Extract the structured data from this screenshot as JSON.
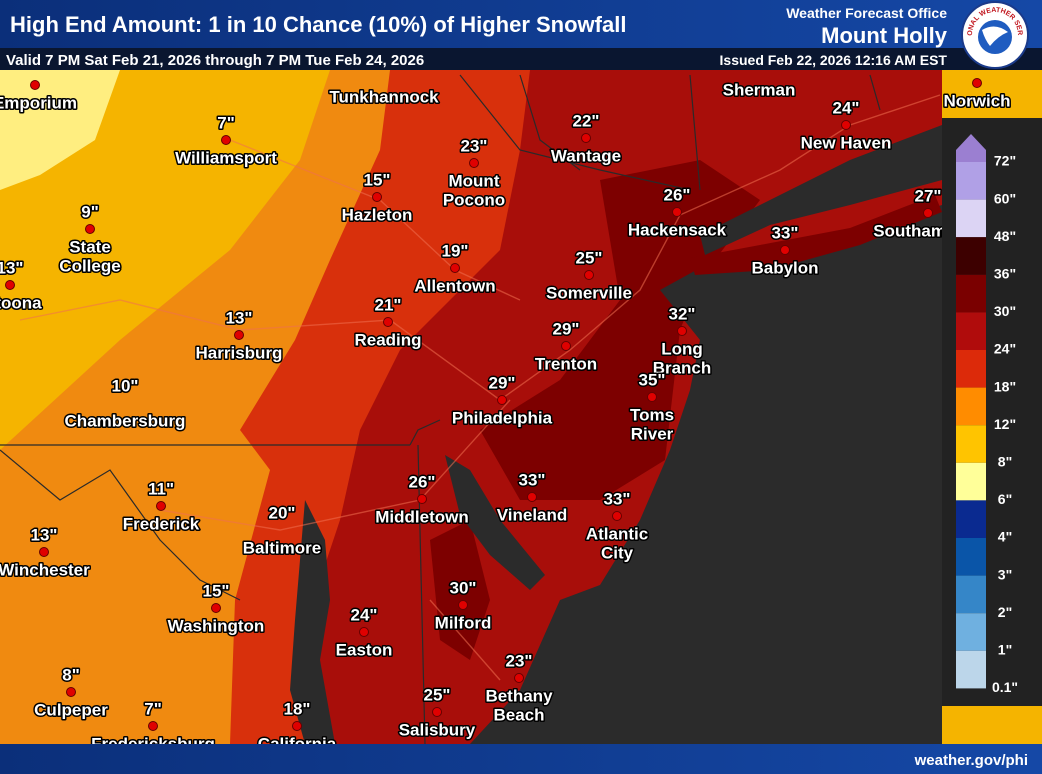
{
  "header": {
    "title": "High End Amount: 1 in 10 Chance (10%) of Higher Snowfall",
    "valid": "Valid 7 PM Sat Feb 21, 2026 through 7 PM Tue Feb 24, 2026",
    "office_label": "Weather Forecast Office",
    "office_name": "Mount Holly",
    "issued": "Issued Feb 22, 2026 12:16 AM EST",
    "logo_text": "NATIONAL WEATHER SERVICE"
  },
  "cities": [
    {
      "name": [
        "Emporium"
      ]
    },
    {
      "name": [
        "Tunkhannock"
      ]
    },
    {
      "name": [
        "Williamsport"
      ],
      "amount": "7\""
    },
    {
      "name": [
        "Mount",
        "Pocono"
      ],
      "amount": "23\""
    },
    {
      "name": [
        "Wantage"
      ],
      "amount": "22\""
    },
    {
      "name": [
        "Sherman"
      ]
    },
    {
      "name": [
        "New Haven"
      ],
      "amount": "24\""
    },
    {
      "name": [
        "Norwich"
      ]
    },
    {
      "name": [
        "Hazleton"
      ],
      "amount": "15\""
    },
    {
      "name": [
        "State",
        "College"
      ],
      "amount": "9\""
    },
    {
      "name": [
        "Altoona"
      ],
      "amount": "13\""
    },
    {
      "name": [
        "Hackensack"
      ],
      "amount": "26\""
    },
    {
      "name": [
        "Southampton"
      ],
      "amount": "27\""
    },
    {
      "name": [
        "Babylon"
      ],
      "amount": "33\""
    },
    {
      "name": [
        "Allentown"
      ],
      "amount": "19\""
    },
    {
      "name": [
        "Somerville"
      ],
      "amount": "25\""
    },
    {
      "name": [
        "Reading"
      ],
      "amount": "21\""
    },
    {
      "name": [
        "Harrisburg"
      ],
      "amount": "13\""
    },
    {
      "name": [
        "Trenton"
      ],
      "amount": "29\""
    },
    {
      "name": [
        "Long",
        "Branch"
      ],
      "amount": "32\""
    },
    {
      "name": [
        "Toms",
        "River"
      ],
      "amount": "35\""
    },
    {
      "name": [
        "Chambersburg"
      ],
      "amount": "10\""
    },
    {
      "name": [
        "Philadelphia"
      ],
      "amount": "29\""
    },
    {
      "name": [
        "Frederick"
      ],
      "amount": "11\""
    },
    {
      "name": [
        "Middletown"
      ],
      "amount": "26\""
    },
    {
      "name": [
        "Vineland"
      ],
      "amount": "33\""
    },
    {
      "name": [
        "Atlantic",
        "City"
      ],
      "amount": "33\""
    },
    {
      "name": [
        "Baltimore"
      ],
      "amount": "20\""
    },
    {
      "name": [
        "Winchester"
      ],
      "amount": "13\""
    },
    {
      "name": [
        "Washington"
      ],
      "amount": "15\""
    },
    {
      "name": [
        "Milford"
      ],
      "amount": "30\""
    },
    {
      "name": [
        "Easton"
      ],
      "amount": "24\""
    },
    {
      "name": [
        "Bethany",
        "Beach"
      ],
      "amount": "23\""
    },
    {
      "name": [
        "Culpeper"
      ],
      "amount": "8\""
    },
    {
      "name": [
        "Salisbury"
      ],
      "amount": "25\""
    },
    {
      "name": [
        "Fredericksburg"
      ],
      "amount": "7\""
    },
    {
      "name": [
        "California"
      ],
      "amount": "18\""
    }
  ],
  "legend": {
    "labels": [
      "72\"",
      "60\"",
      "48\"",
      "36\"",
      "30\"",
      "24\"",
      "18\"",
      "12\"",
      "8\"",
      "6\"",
      "4\"",
      "3\"",
      "2\"",
      "1\"",
      "0.1\""
    ],
    "colors": [
      "#9b7fd1",
      "#b0a0e6",
      "#dcd4f4",
      "#3d0000",
      "#7a0000",
      "#b00c0c",
      "#dc2a0a",
      "#ff8c00",
      "#ffc400",
      "#ffff99",
      "#0a2a90",
      "#0a55a8",
      "#3586c8",
      "#6fb0e0",
      "#bcd6ea"
    ]
  },
  "footer": {
    "url": "weather.gov/phi"
  }
}
